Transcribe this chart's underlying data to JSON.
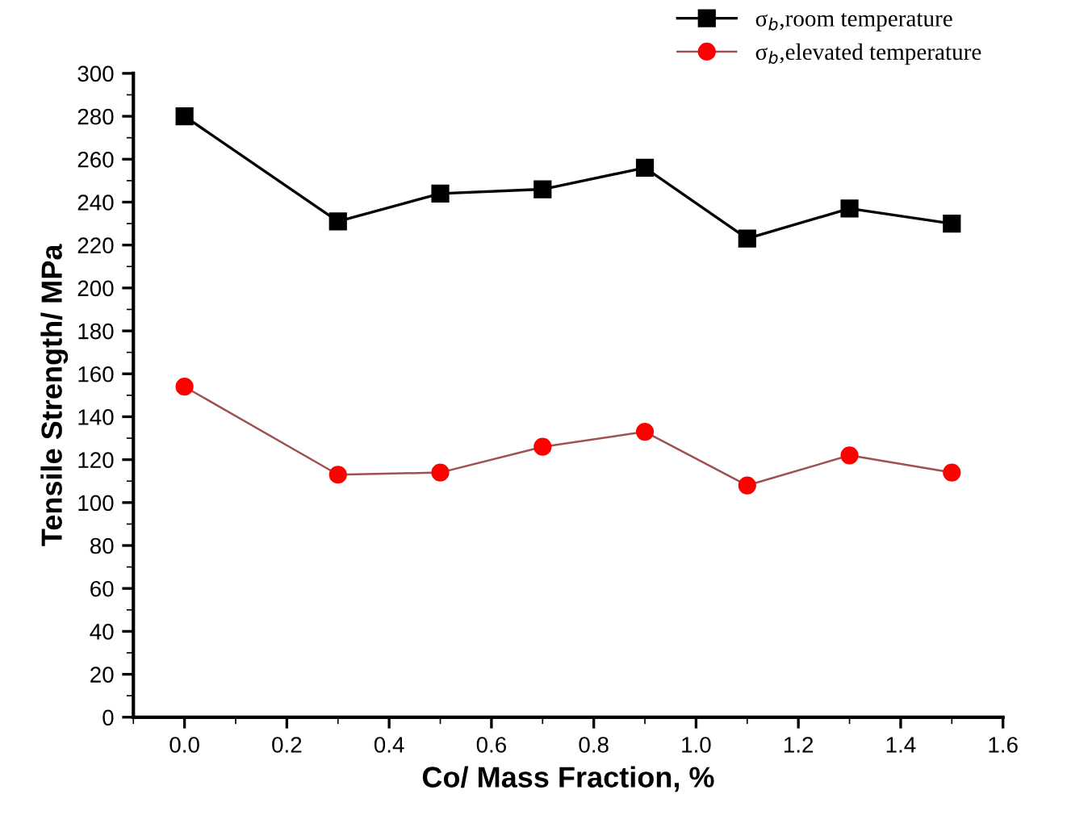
{
  "chart_data": {
    "type": "line",
    "xlabel": "Co/ Mass Fraction, %",
    "ylabel": "Tensile Strength/ MPa",
    "x": [
      0.0,
      0.3,
      0.5,
      0.7,
      0.9,
      1.1,
      1.3,
      1.5
    ],
    "series": [
      {
        "name": "σ$_{b}$,room temperature",
        "color": "#000000",
        "marker": "square",
        "values": [
          280,
          231,
          244,
          246,
          256,
          223,
          237,
          230
        ]
      },
      {
        "name": "σ$_{b}$,elevated temperature",
        "color": "#ff0000",
        "marker": "circle",
        "values": [
          154,
          113,
          114,
          126,
          133,
          108,
          122,
          114
        ]
      }
    ],
    "xlim": [
      -0.1,
      1.6
    ],
    "ylim": [
      0,
      300
    ],
    "xticks": [
      {
        "value": 0,
        "label": "0.0"
      },
      {
        "value": 0.2,
        "label": "0.2"
      },
      {
        "value": 0.4,
        "label": "0.4"
      },
      {
        "value": 0.6,
        "label": "0.6"
      },
      {
        "value": 0.8,
        "label": "0.8"
      },
      {
        "value": 1.0,
        "label": "1.0"
      },
      {
        "value": 1.2,
        "label": "1.2"
      },
      {
        "value": 1.4,
        "label": "1.4"
      },
      {
        "value": 1.6,
        "label": "1.6"
      }
    ],
    "yticks": [
      0,
      20,
      40,
      60,
      80,
      100,
      120,
      140,
      160,
      180,
      200,
      220,
      240,
      260,
      280,
      300
    ],
    "grid": false,
    "legend": "top right"
  }
}
